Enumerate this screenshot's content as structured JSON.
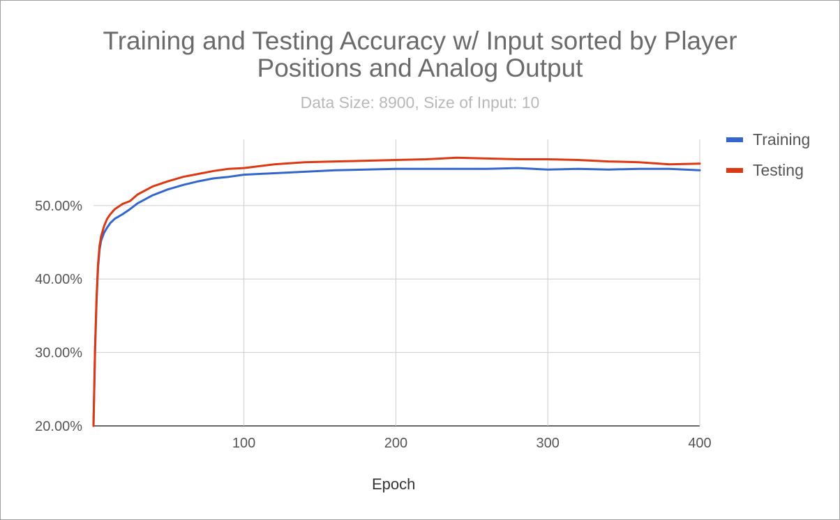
{
  "chart_data": {
    "type": "line",
    "title": "Training and Testing Accuracy w/ Input sorted by Player Positions and Analog Output",
    "title_lines": [
      "Training and Testing Accuracy w/ Input sorted by Player",
      "Positions and Analog Output"
    ],
    "subtitle": "Data Size: 8900, Size of Input: 10",
    "xlabel": "Epoch",
    "ylabel": "",
    "xlim": [
      1,
      400
    ],
    "ylim": [
      20,
      59
    ],
    "x_ticks": [
      100,
      200,
      300,
      400
    ],
    "x_tick_labels": [
      "100",
      "200",
      "300",
      "400"
    ],
    "y_ticks": [
      20,
      30,
      40,
      50
    ],
    "y_tick_labels": [
      "20.00%",
      "30.00%",
      "40.00%",
      "50.00%"
    ],
    "grid": true,
    "legend_position": "right",
    "series": [
      {
        "name": "Training",
        "color": "#3366cc",
        "x": [
          1,
          2,
          3,
          4,
          5,
          6,
          8,
          10,
          12,
          15,
          20,
          25,
          30,
          40,
          50,
          60,
          70,
          80,
          90,
          100,
          120,
          140,
          160,
          180,
          200,
          220,
          240,
          260,
          280,
          300,
          320,
          340,
          360,
          380,
          400
        ],
        "y": [
          20.0,
          30.0,
          37.0,
          41.5,
          44.0,
          45.2,
          46.3,
          47.0,
          47.6,
          48.2,
          48.8,
          49.5,
          50.3,
          51.4,
          52.2,
          52.8,
          53.3,
          53.7,
          53.9,
          54.2,
          54.4,
          54.6,
          54.8,
          54.9,
          55.0,
          55.0,
          55.0,
          55.0,
          55.1,
          54.9,
          55.0,
          54.9,
          55.0,
          55.0,
          54.8
        ]
      },
      {
        "name": "Testing",
        "color": "#dc3912",
        "x": [
          1,
          2,
          3,
          4,
          5,
          6,
          8,
          10,
          12,
          15,
          20,
          25,
          30,
          40,
          50,
          60,
          70,
          80,
          90,
          100,
          120,
          140,
          160,
          180,
          200,
          220,
          240,
          260,
          280,
          300,
          320,
          340,
          360,
          380,
          400
        ],
        "y": [
          20.0,
          30.5,
          37.5,
          42.0,
          44.5,
          45.8,
          47.2,
          48.2,
          48.8,
          49.5,
          50.2,
          50.6,
          51.5,
          52.6,
          53.3,
          53.9,
          54.3,
          54.7,
          55.0,
          55.1,
          55.6,
          55.9,
          56.0,
          56.1,
          56.2,
          56.3,
          56.5,
          56.4,
          56.3,
          56.3,
          56.2,
          56.0,
          55.9,
          55.6,
          55.7
        ]
      }
    ]
  }
}
